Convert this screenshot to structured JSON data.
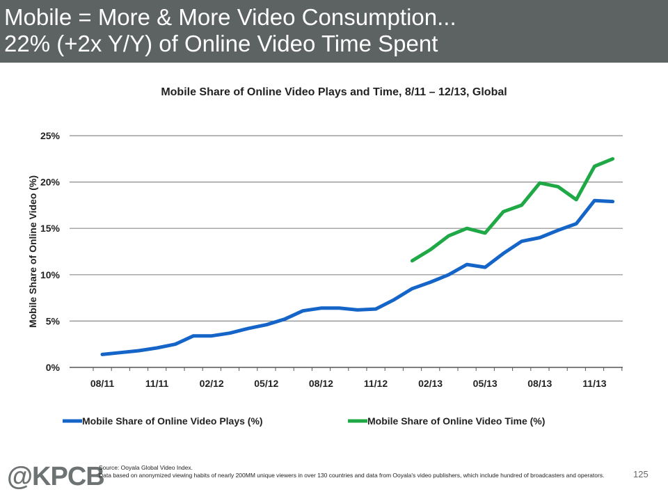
{
  "header": {
    "line1": "Mobile = More & More Video Consumption...",
    "line2": "22% (+2x Y/Y) of Online Video Time Spent"
  },
  "chart_data": {
    "type": "line",
    "title": "Mobile Share of Online Video Plays and Time, 8/11 – 12/13, Global",
    "xlabel": "",
    "ylabel": "Mobile Share of Online Video (%)",
    "ylim": [
      0,
      25
    ],
    "yticks": [
      "0%",
      "5%",
      "10%",
      "15%",
      "20%",
      "25%"
    ],
    "ytick_values": [
      0,
      5,
      10,
      15,
      20,
      25
    ],
    "xtick_labels": [
      "08/11",
      "11/11",
      "02/12",
      "05/12",
      "08/12",
      "11/12",
      "02/13",
      "05/13",
      "08/13",
      "11/13"
    ],
    "x": [
      "08/11",
      "09/11",
      "10/11",
      "11/11",
      "12/11",
      "01/12",
      "02/12",
      "03/12",
      "04/12",
      "05/12",
      "06/12",
      "07/12",
      "08/12",
      "09/12",
      "10/12",
      "11/12",
      "12/12",
      "01/13",
      "02/13",
      "03/13",
      "04/13",
      "05/13",
      "06/13",
      "07/13",
      "08/13",
      "09/13",
      "10/13",
      "11/13",
      "12/13"
    ],
    "grid": true,
    "legend_position": "bottom",
    "series": [
      {
        "name": "Mobile Share of Online Video Plays (%)",
        "color": "#1565c8",
        "values": [
          1.4,
          1.6,
          1.8,
          2.1,
          2.5,
          3.4,
          3.4,
          3.7,
          4.2,
          4.6,
          5.2,
          6.1,
          6.4,
          6.4,
          6.2,
          6.3,
          7.3,
          8.5,
          9.2,
          10.0,
          11.1,
          10.8,
          12.3,
          13.6,
          14.0,
          14.8,
          15.5,
          18.0,
          17.9
        ]
      },
      {
        "name": "Mobile Share of Online Video Time (%)",
        "color": "#1fa846",
        "values": [
          null,
          null,
          null,
          null,
          null,
          null,
          null,
          null,
          null,
          null,
          null,
          null,
          null,
          null,
          null,
          null,
          null,
          11.5,
          12.7,
          14.2,
          15.0,
          14.5,
          16.8,
          17.5,
          19.9,
          19.5,
          18.1,
          21.7,
          22.5
        ]
      }
    ]
  },
  "footer": {
    "logo": "@KPCB",
    "source_line1": "Source: Ooyala Global Video Index.",
    "source_line2": "Data based on anonymized viewing habits of nearly 200MM unique viewers in over 130 countries and data from Ooyala's video publishers, which include hundred of broadcasters and operators.",
    "page_number": "125"
  }
}
